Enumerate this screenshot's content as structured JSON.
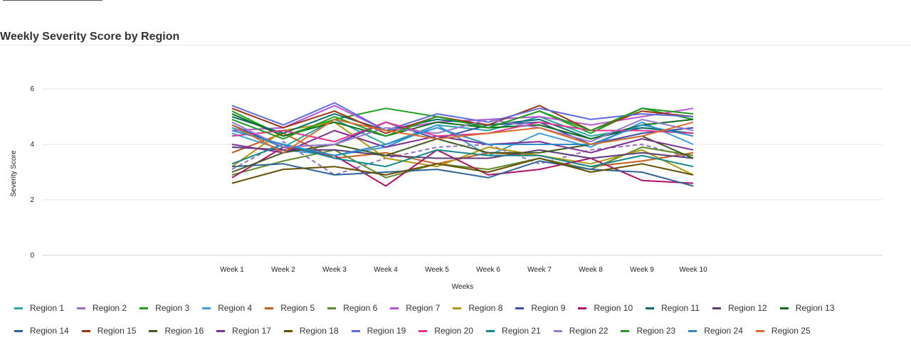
{
  "page": {
    "title": "Weekly Severity Score by Region"
  },
  "chart_data": {
    "type": "line",
    "title": "Weekly Severity Score by Region",
    "xlabel": "Weeks",
    "ylabel": "Severity Score",
    "ylim": [
      0,
      7
    ],
    "yticks": [
      "0",
      "2",
      "4",
      "6"
    ],
    "grid": true,
    "legend_position": "bottom",
    "categories": [
      "Week 1",
      "Week 2",
      "Week 3",
      "Week 4",
      "Week 5",
      "Week 6",
      "Week 7",
      "Week 8",
      "Week 9",
      "Week 10"
    ],
    "series": [
      {
        "name": "Region 1",
        "color": "#2ca3a3",
        "dashed": false,
        "values": [
          4.6,
          3.9,
          4.9,
          4.0,
          4.7,
          4.5,
          5.0,
          4.3,
          4.6,
          4.4
        ]
      },
      {
        "name": "Region 2",
        "color": "#9370c9",
        "dashed": true,
        "values": [
          3.1,
          4.1,
          2.9,
          3.5,
          3.9,
          4.0,
          3.3,
          3.8,
          4.0,
          3.5
        ]
      },
      {
        "name": "Region 3",
        "color": "#1fa31f",
        "dashed": false,
        "values": [
          5.2,
          4.3,
          4.9,
          5.3,
          5.0,
          4.6,
          5.2,
          4.4,
          5.3,
          4.9
        ]
      },
      {
        "name": "Region 4",
        "color": "#3d9de0",
        "dashed": false,
        "values": [
          4.4,
          3.8,
          3.6,
          3.9,
          4.7,
          3.6,
          4.4,
          3.9,
          4.8,
          4.0
        ]
      },
      {
        "name": "Region 5",
        "color": "#c95a1a",
        "dashed": false,
        "values": [
          3.7,
          4.4,
          3.5,
          3.7,
          3.3,
          3.7,
          3.6,
          3.2,
          3.4,
          3.7
        ]
      },
      {
        "name": "Region 6",
        "color": "#5e8c2a",
        "dashed": false,
        "values": [
          2.9,
          3.4,
          3.8,
          2.8,
          3.3,
          3.1,
          3.5,
          3.1,
          3.9,
          3.6
        ]
      },
      {
        "name": "Region 7",
        "color": "#b854d4",
        "dashed": false,
        "values": [
          4.5,
          4.6,
          5.4,
          4.5,
          4.8,
          4.9,
          5.0,
          4.7,
          5.0,
          5.3
        ]
      },
      {
        "name": "Region 8",
        "color": "#b3980a",
        "dashed": false,
        "values": [
          3.2,
          4.5,
          4.8,
          3.5,
          3.2,
          3.9,
          3.6,
          3.3,
          3.8,
          2.9
        ]
      },
      {
        "name": "Region 9",
        "color": "#3b4bad",
        "dashed": false,
        "values": [
          4.7,
          3.9,
          4.0,
          4.8,
          4.2,
          4.7,
          4.8,
          4.0,
          4.4,
          4.6
        ]
      },
      {
        "name": "Region 10",
        "color": "#b0106b",
        "dashed": false,
        "values": [
          2.8,
          3.9,
          3.6,
          2.5,
          3.8,
          2.9,
          3.1,
          3.5,
          2.7,
          2.6
        ]
      },
      {
        "name": "Region 11",
        "color": "#0d6b6b",
        "dashed": false,
        "values": [
          5.0,
          4.4,
          5.1,
          4.5,
          4.9,
          4.7,
          4.9,
          4.2,
          4.6,
          4.4
        ]
      },
      {
        "name": "Region 12",
        "color": "#5c3d7a",
        "dashed": false,
        "values": [
          3.9,
          3.8,
          3.8,
          3.6,
          3.5,
          3.5,
          3.8,
          3.5,
          3.7,
          3.5
        ]
      },
      {
        "name": "Region 13",
        "color": "#0a6e1a",
        "dashed": false,
        "values": [
          5.1,
          4.3,
          4.8,
          4.3,
          4.8,
          4.6,
          4.7,
          4.2,
          4.7,
          4.9
        ]
      },
      {
        "name": "Region 14",
        "color": "#2e6699",
        "dashed": false,
        "values": [
          3.2,
          3.3,
          2.9,
          3.0,
          3.1,
          2.8,
          3.4,
          3.1,
          3.0,
          2.5
        ]
      },
      {
        "name": "Region 15",
        "color": "#9e3510",
        "dashed": false,
        "values": [
          5.3,
          4.6,
          5.2,
          4.4,
          5.0,
          4.7,
          5.4,
          4.5,
          5.2,
          5.0
        ]
      },
      {
        "name": "Region 16",
        "color": "#3f5c1f",
        "dashed": false,
        "values": [
          3.0,
          3.7,
          4.0,
          3.6,
          4.2,
          3.7,
          3.7,
          4.0,
          4.3,
          3.5
        ]
      },
      {
        "name": "Region 17",
        "color": "#7b2f91",
        "dashed": false,
        "values": [
          4.0,
          3.7,
          4.5,
          3.9,
          4.3,
          4.0,
          4.1,
          3.7,
          4.2,
          3.8
        ]
      },
      {
        "name": "Region 18",
        "color": "#665000",
        "dashed": false,
        "values": [
          2.6,
          3.1,
          3.2,
          2.9,
          3.3,
          3.0,
          3.5,
          3.0,
          3.3,
          2.9
        ]
      },
      {
        "name": "Region 19",
        "color": "#5f6be0",
        "dashed": false,
        "values": [
          5.4,
          4.7,
          5.5,
          4.5,
          5.1,
          4.8,
          5.3,
          4.9,
          5.1,
          5.0
        ]
      },
      {
        "name": "Region 20",
        "color": "#e0358f",
        "dashed": false,
        "values": [
          4.3,
          4.5,
          4.1,
          4.8,
          4.3,
          4.4,
          4.8,
          4.5,
          4.5,
          4.4
        ]
      },
      {
        "name": "Region 21",
        "color": "#13888a",
        "dashed": false,
        "values": [
          3.3,
          4.0,
          3.5,
          3.2,
          3.8,
          3.6,
          3.6,
          3.2,
          3.6,
          3.2
        ]
      },
      {
        "name": "Region 22",
        "color": "#9b7bd1",
        "dashed": false,
        "values": [
          4.8,
          3.9,
          4.0,
          4.6,
          4.4,
          4.9,
          4.6,
          4.1,
          4.9,
          4.5
        ]
      },
      {
        "name": "Region 23",
        "color": "#239b23",
        "dashed": false,
        "values": [
          4.9,
          4.2,
          5.0,
          4.3,
          5.0,
          4.6,
          5.2,
          4.5,
          5.3,
          5.1
        ]
      },
      {
        "name": "Region 24",
        "color": "#2f8bc9",
        "dashed": false,
        "values": [
          4.5,
          4.0,
          3.6,
          4.0,
          4.6,
          4.0,
          4.0,
          4.0,
          4.7,
          4.3
        ]
      },
      {
        "name": "Region 25",
        "color": "#d96b2e",
        "dashed": false,
        "values": [
          4.7,
          3.7,
          4.9,
          4.5,
          4.2,
          4.4,
          4.6,
          4.0,
          4.3,
          4.8
        ]
      }
    ]
  }
}
